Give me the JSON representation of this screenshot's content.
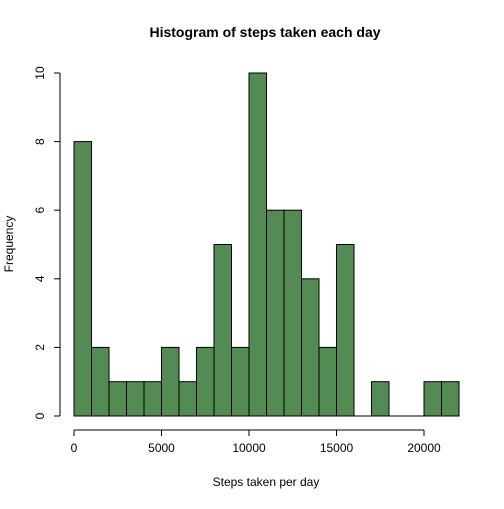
{
  "chart_data": {
    "type": "histogram",
    "title": "Histogram of steps taken each day",
    "xlabel": "Steps taken per day",
    "ylabel": "Frequency",
    "bin_width": 1000,
    "bins": [
      {
        "start": 0,
        "end": 1000,
        "count": 8
      },
      {
        "start": 1000,
        "end": 2000,
        "count": 2
      },
      {
        "start": 2000,
        "end": 3000,
        "count": 1
      },
      {
        "start": 3000,
        "end": 4000,
        "count": 1
      },
      {
        "start": 4000,
        "end": 5000,
        "count": 1
      },
      {
        "start": 5000,
        "end": 6000,
        "count": 2
      },
      {
        "start": 6000,
        "end": 7000,
        "count": 1
      },
      {
        "start": 7000,
        "end": 8000,
        "count": 2
      },
      {
        "start": 8000,
        "end": 9000,
        "count": 5
      },
      {
        "start": 9000,
        "end": 10000,
        "count": 2
      },
      {
        "start": 10000,
        "end": 11000,
        "count": 10
      },
      {
        "start": 11000,
        "end": 12000,
        "count": 6
      },
      {
        "start": 12000,
        "end": 13000,
        "count": 6
      },
      {
        "start": 13000,
        "end": 14000,
        "count": 4
      },
      {
        "start": 14000,
        "end": 15000,
        "count": 2
      },
      {
        "start": 15000,
        "end": 16000,
        "count": 5
      },
      {
        "start": 16000,
        "end": 17000,
        "count": 0
      },
      {
        "start": 17000,
        "end": 18000,
        "count": 1
      },
      {
        "start": 18000,
        "end": 19000,
        "count": 0
      },
      {
        "start": 19000,
        "end": 20000,
        "count": 0
      },
      {
        "start": 20000,
        "end": 21000,
        "count": 1
      },
      {
        "start": 21000,
        "end": 22000,
        "count": 1
      }
    ],
    "xlim": [
      0,
      22000
    ],
    "ylim": [
      0,
      10
    ],
    "x_ticks": [
      0,
      5000,
      10000,
      15000,
      20000
    ],
    "y_ticks": [
      0,
      2,
      4,
      6,
      8,
      10
    ],
    "bar_color": "#548B54",
    "bar_border_color": "#000000",
    "grid": false
  }
}
